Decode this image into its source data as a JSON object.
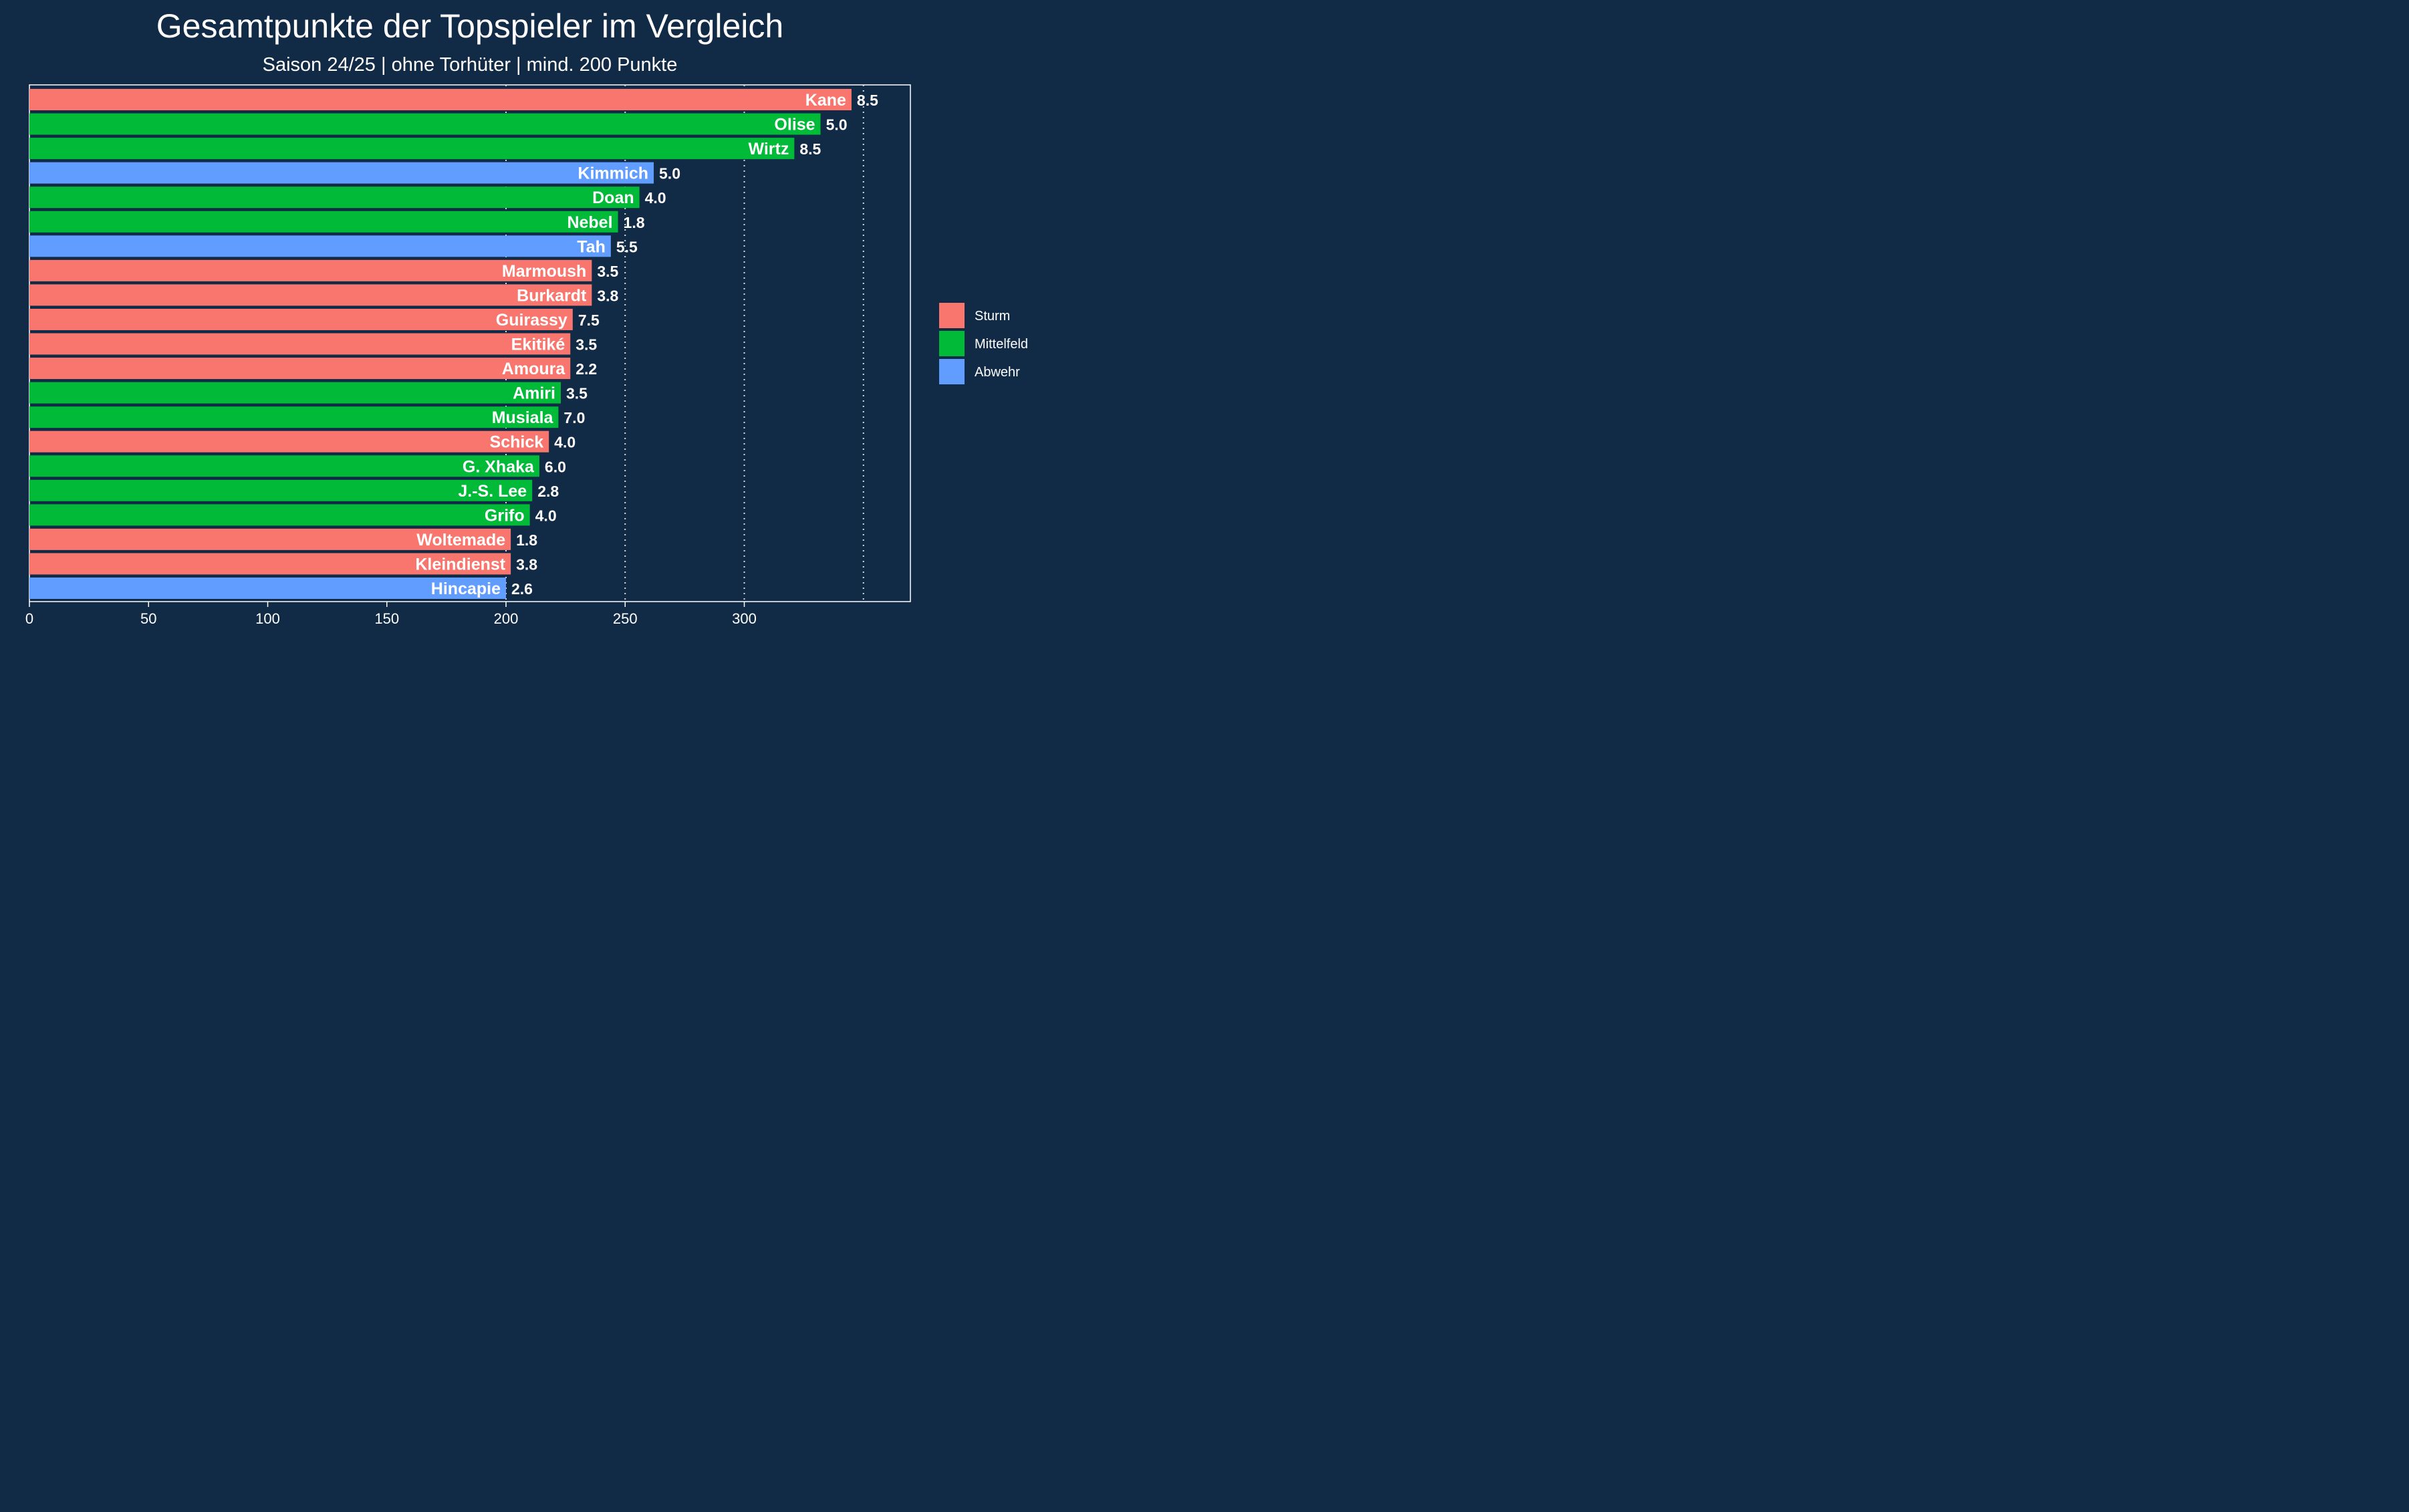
{
  "chart_data": {
    "type": "bar",
    "orientation": "horizontal",
    "title": "Gesamtpunkte der Topspieler im Vergleich",
    "subtitle": "Saison 24/25 | ohne Torhüter | mind. 200 Punkte",
    "xlim": [
      0,
      370
    ],
    "xticks": [
      0,
      50,
      100,
      150,
      200,
      250,
      300
    ],
    "gridlines": [
      200,
      250,
      300,
      350
    ],
    "legend_position": "right",
    "colors": {
      "Sturm": "#f8766d",
      "Mittelfeld": "#00ba38",
      "Abwehr": "#619cff"
    },
    "legend": [
      "Sturm",
      "Mittelfeld",
      "Abwehr"
    ],
    "bars": [
      {
        "name": "Kane",
        "position": "Sturm",
        "points": 345,
        "value_label": "8.5"
      },
      {
        "name": "Olise",
        "position": "Mittelfeld",
        "points": 332,
        "value_label": "5.0"
      },
      {
        "name": "Wirtz",
        "position": "Mittelfeld",
        "points": 321,
        "value_label": "8.5"
      },
      {
        "name": "Kimmich",
        "position": "Abwehr",
        "points": 262,
        "value_label": "5.0"
      },
      {
        "name": "Doan",
        "position": "Mittelfeld",
        "points": 256,
        "value_label": "4.0"
      },
      {
        "name": "Nebel",
        "position": "Mittelfeld",
        "points": 247,
        "value_label": "1.8"
      },
      {
        "name": "Tah",
        "position": "Abwehr",
        "points": 244,
        "value_label": "5.5"
      },
      {
        "name": "Marmoush",
        "position": "Sturm",
        "points": 236,
        "value_label": "3.5"
      },
      {
        "name": "Burkardt",
        "position": "Sturm",
        "points": 236,
        "value_label": "3.8"
      },
      {
        "name": "Guirassy",
        "position": "Sturm",
        "points": 228,
        "value_label": "7.5"
      },
      {
        "name": "Ekitiké",
        "position": "Sturm",
        "points": 227,
        "value_label": "3.5"
      },
      {
        "name": "Amoura",
        "position": "Sturm",
        "points": 227,
        "value_label": "2.2"
      },
      {
        "name": "Amiri",
        "position": "Mittelfeld",
        "points": 223,
        "value_label": "3.5"
      },
      {
        "name": "Musiala",
        "position": "Mittelfeld",
        "points": 222,
        "value_label": "7.0"
      },
      {
        "name": "Schick",
        "position": "Sturm",
        "points": 218,
        "value_label": "4.0"
      },
      {
        "name": "G. Xhaka",
        "position": "Mittelfeld",
        "points": 214,
        "value_label": "6.0"
      },
      {
        "name": "J.-S. Lee",
        "position": "Mittelfeld",
        "points": 211,
        "value_label": "2.8"
      },
      {
        "name": "Grifo",
        "position": "Mittelfeld",
        "points": 210,
        "value_label": "4.0"
      },
      {
        "name": "Woltemade",
        "position": "Sturm",
        "points": 202,
        "value_label": "1.8"
      },
      {
        "name": "Kleindienst",
        "position": "Sturm",
        "points": 202,
        "value_label": "3.8"
      },
      {
        "name": "Hincapie",
        "position": "Abwehr",
        "points": 200,
        "value_label": "2.6"
      }
    ]
  }
}
